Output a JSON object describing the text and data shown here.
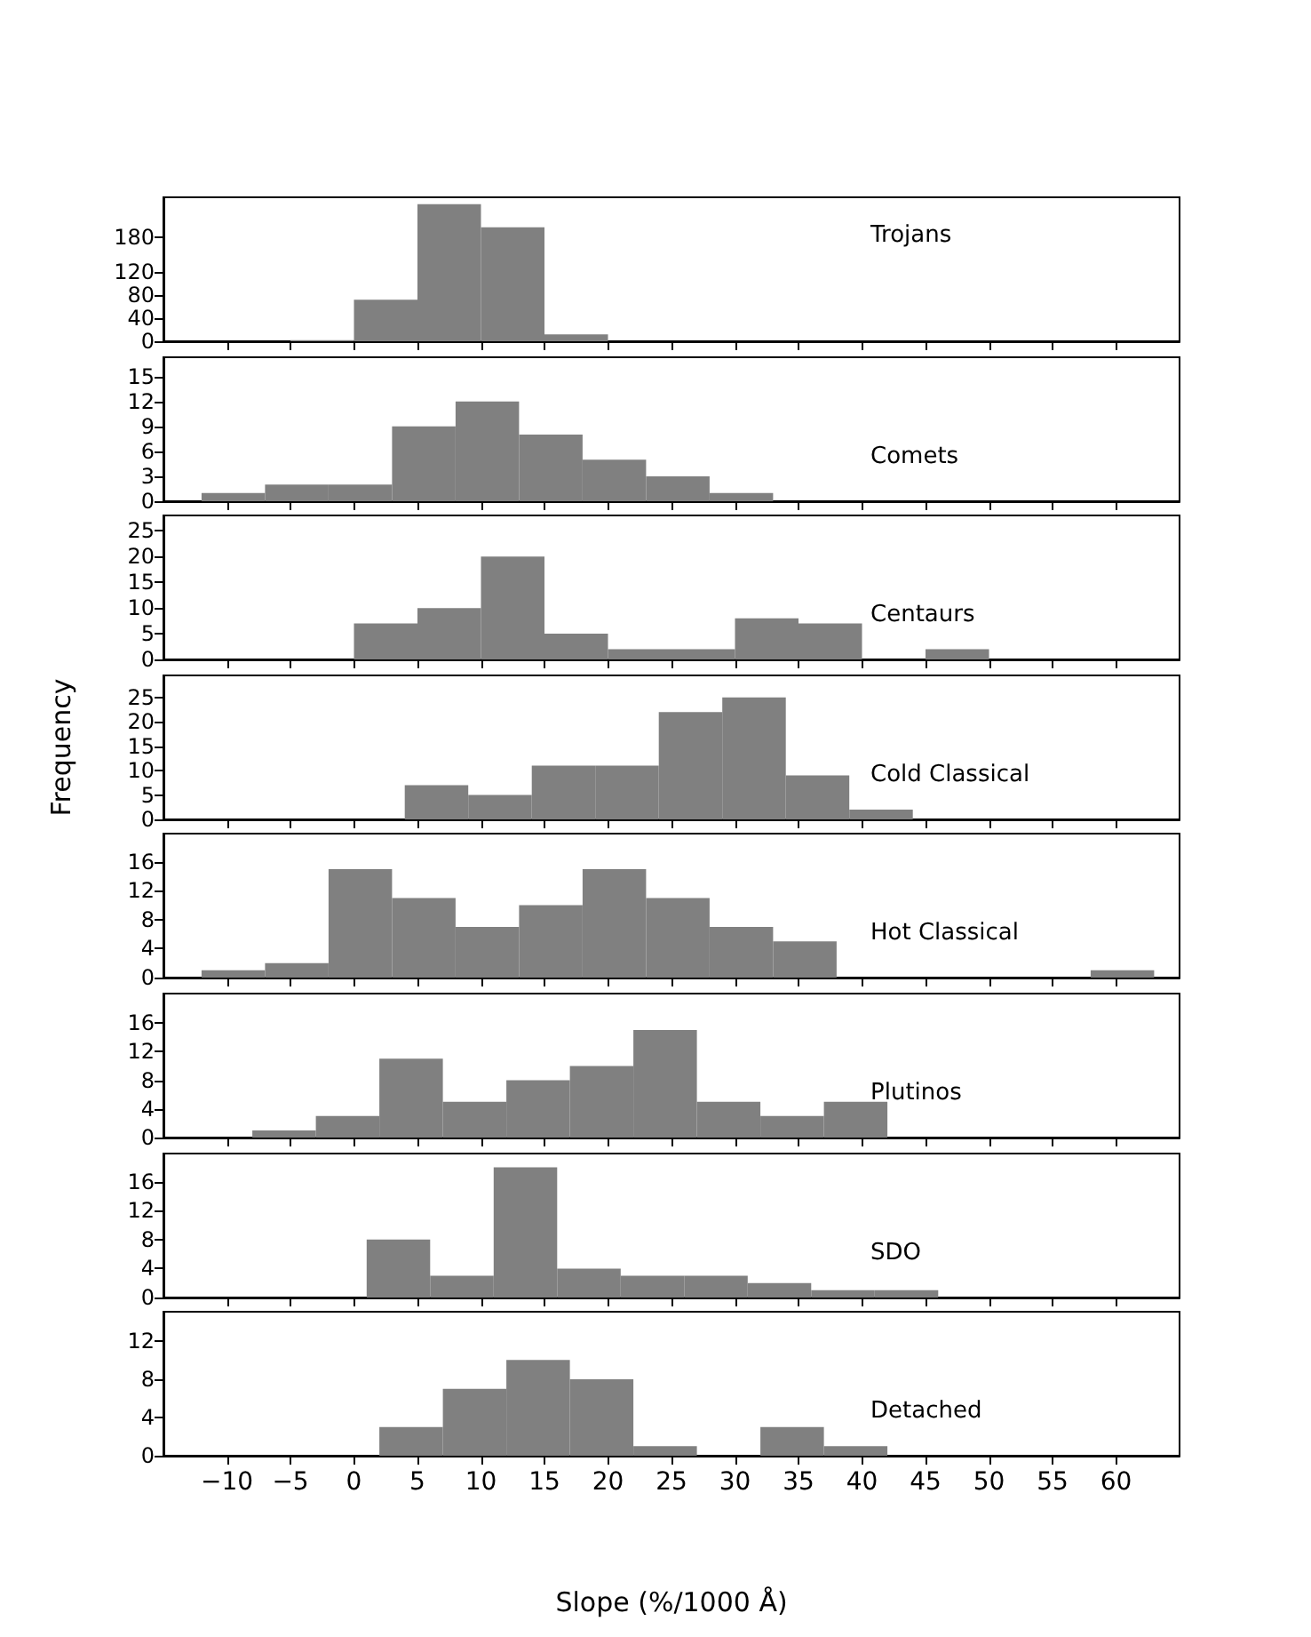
{
  "chart_data": [
    {
      "type": "histogram",
      "title": "Trojans",
      "bins": [
        -5,
        0,
        5,
        10,
        15,
        20
      ],
      "values": [
        2,
        72,
        237,
        197,
        12
      ],
      "color": "#808080",
      "xlim": [
        -15,
        65
      ],
      "xticks": [
        -10,
        -5,
        0,
        5,
        10,
        15,
        20,
        25,
        30,
        35,
        40,
        45,
        50,
        55,
        60
      ],
      "ylim": [
        0,
        249
      ],
      "yticks": [
        0,
        40,
        80,
        120,
        180
      ],
      "tick_labels": "y",
      "grid": false
    },
    {
      "type": "histogram",
      "title": "Comets",
      "bins": [
        -12,
        -7,
        -2,
        3,
        8,
        13,
        18,
        23,
        28,
        33
      ],
      "values": [
        1,
        2,
        2,
        9,
        12,
        8,
        5,
        3,
        1
      ],
      "color": "#808080",
      "xlim": [
        -15,
        65
      ],
      "xticks": [
        -10,
        -5,
        0,
        5,
        10,
        15,
        20,
        25,
        30,
        35,
        40,
        45,
        50,
        55,
        60
      ],
      "ylim": [
        0,
        17.3
      ],
      "yticks": [
        0,
        3,
        6,
        9,
        12,
        15
      ],
      "tick_labels": "y",
      "grid": false
    },
    {
      "type": "histogram",
      "title": "Centaurs",
      "bins": [
        0,
        5,
        10,
        15,
        20,
        25,
        30,
        35,
        40,
        45,
        50
      ],
      "values": [
        7,
        10,
        20,
        5,
        2,
        2,
        8,
        7,
        0,
        2
      ],
      "color": "#808080",
      "xlim": [
        -15,
        65
      ],
      "xticks": [
        -10,
        -5,
        0,
        5,
        10,
        15,
        20,
        25,
        30,
        35,
        40,
        45,
        50,
        55,
        60
      ],
      "ylim": [
        0,
        28
      ],
      "yticks": [
        0,
        5,
        10,
        15,
        20,
        25
      ],
      "tick_labels": "y",
      "grid": false
    },
    {
      "type": "histogram",
      "title": "Cold Classical",
      "ylabel": "Frequency",
      "bins": [
        4,
        9,
        14,
        19,
        24,
        29,
        34,
        39,
        44
      ],
      "values": [
        7,
        5,
        11,
        11,
        22,
        25,
        9,
        2
      ],
      "color": "#808080",
      "xlim": [
        -15,
        65
      ],
      "xticks": [
        -10,
        -5,
        0,
        5,
        10,
        15,
        20,
        25,
        30,
        35,
        40,
        45,
        50,
        55,
        60
      ],
      "ylim": [
        0,
        29.5
      ],
      "yticks": [
        0,
        5,
        10,
        15,
        20,
        25
      ],
      "tick_labels": "y",
      "grid": false
    },
    {
      "type": "histogram",
      "title": "Hot Classical",
      "bins": [
        -12,
        -7,
        -2,
        3,
        8,
        13,
        18,
        23,
        28,
        33,
        38,
        43,
        48,
        53,
        58,
        63
      ],
      "values": [
        1,
        2,
        15,
        11,
        7,
        10,
        15,
        11,
        7,
        5,
        0,
        0,
        0,
        0,
        1
      ],
      "color": "#808080",
      "xlim": [
        -15,
        65
      ],
      "xticks": [
        -10,
        -5,
        0,
        5,
        10,
        15,
        20,
        25,
        30,
        35,
        40,
        45,
        50,
        55,
        60
      ],
      "ylim": [
        0,
        19.9
      ],
      "yticks": [
        0,
        4,
        8,
        12,
        16
      ],
      "tick_labels": "y",
      "grid": false
    },
    {
      "type": "histogram",
      "title": "Plutinos",
      "bins": [
        -8,
        -3,
        2,
        7,
        12,
        17,
        22,
        27,
        32,
        37,
        42
      ],
      "values": [
        1,
        3,
        11,
        5,
        8,
        10,
        15,
        5,
        3,
        5
      ],
      "color": "#808080",
      "xlim": [
        -15,
        65
      ],
      "xticks": [
        -10,
        -5,
        0,
        5,
        10,
        15,
        20,
        25,
        30,
        35,
        40,
        45,
        50,
        55,
        60
      ],
      "ylim": [
        0,
        20.1
      ],
      "yticks": [
        0,
        4,
        8,
        12,
        16
      ],
      "tick_labels": "y",
      "grid": false
    },
    {
      "type": "histogram",
      "title": "SDO",
      "bins": [
        1,
        6,
        11,
        16,
        21,
        26,
        31,
        36,
        41,
        46
      ],
      "values": [
        8,
        3,
        18,
        4,
        3,
        3,
        2,
        1,
        1
      ],
      "color": "#808080",
      "xlim": [
        -15,
        65
      ],
      "xticks": [
        -10,
        -5,
        0,
        5,
        10,
        15,
        20,
        25,
        30,
        35,
        40,
        45,
        50,
        55,
        60
      ],
      "ylim": [
        0,
        19.9
      ],
      "yticks": [
        0,
        4,
        8,
        12,
        16
      ],
      "tick_labels": "y",
      "grid": false
    },
    {
      "type": "histogram",
      "title": "Detached",
      "xlabel": "Slope (%/1000 Å)",
      "bins": [
        2,
        7,
        12,
        17,
        22,
        27,
        32,
        37,
        42
      ],
      "values": [
        3,
        7,
        10,
        8,
        1,
        0,
        3,
        1
      ],
      "color": "#808080",
      "xlim": [
        -15,
        65
      ],
      "xticks": [
        -10,
        -5,
        0,
        5,
        10,
        15,
        20,
        25,
        30,
        35,
        40,
        45,
        50,
        55,
        60
      ],
      "ylim": [
        0,
        15.05
      ],
      "yticks": [
        0,
        4,
        8,
        12
      ],
      "grid": false
    }
  ]
}
